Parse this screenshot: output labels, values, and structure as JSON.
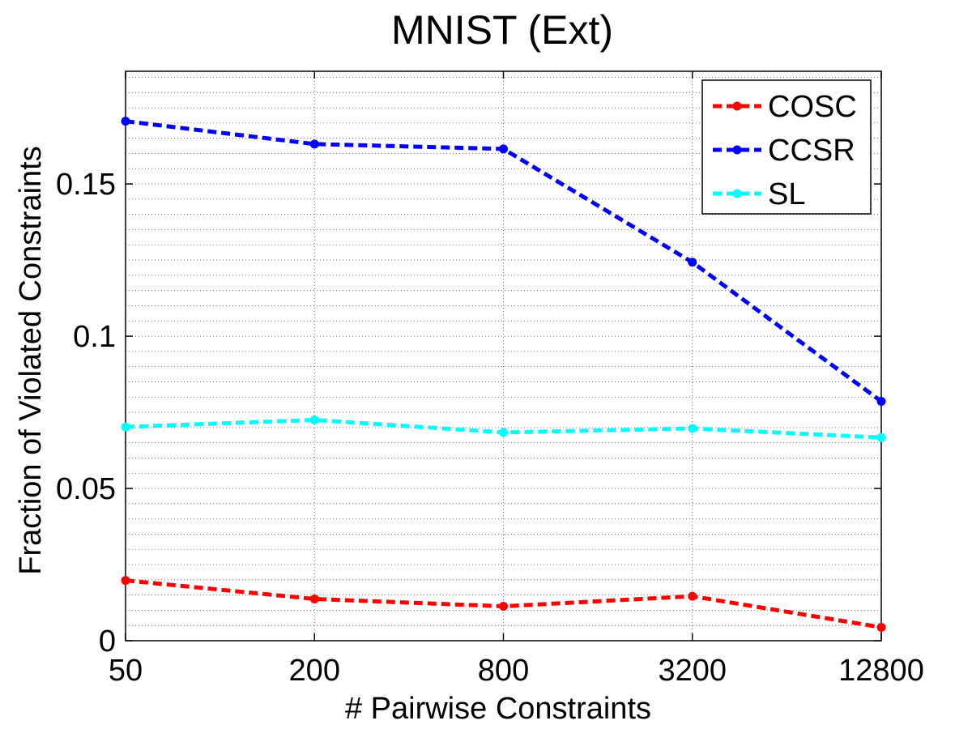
{
  "chart_data": {
    "type": "line",
    "title": "MNIST (Ext)",
    "xlabel": "# Pairwise Constraints",
    "ylabel": "Fraction of Violated Constraints",
    "categories": [
      "50",
      "200",
      "800",
      "3200",
      "12800"
    ],
    "ylim": [
      0,
      0.187
    ],
    "yticks": [
      0,
      0.05,
      0.1,
      0.15
    ],
    "ytick_labels": [
      "0",
      "0.05",
      "0.1",
      "0.15"
    ],
    "y_minor_step": 0.005,
    "grid": true,
    "legend_position": "top-right",
    "series": [
      {
        "name": "COSC",
        "color": "#ff0000",
        "values": [
          0.0198,
          0.0137,
          0.0113,
          0.0146,
          0.0044
        ]
      },
      {
        "name": "CCSR",
        "color": "#0000ff",
        "values": [
          0.1706,
          0.1631,
          0.1615,
          0.1243,
          0.0786
        ]
      },
      {
        "name": "SL",
        "color": "#00ffff",
        "values": [
          0.0702,
          0.0725,
          0.0684,
          0.0697,
          0.0667
        ]
      }
    ]
  }
}
